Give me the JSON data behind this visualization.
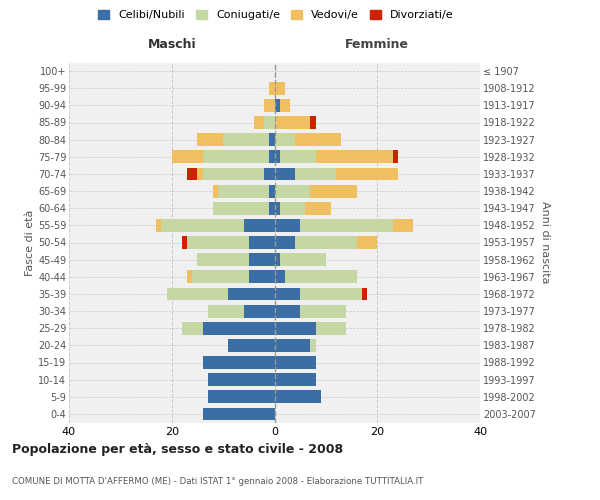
{
  "age_groups": [
    "0-4",
    "5-9",
    "10-14",
    "15-19",
    "20-24",
    "25-29",
    "30-34",
    "35-39",
    "40-44",
    "45-49",
    "50-54",
    "55-59",
    "60-64",
    "65-69",
    "70-74",
    "75-79",
    "80-84",
    "85-89",
    "90-94",
    "95-99",
    "100+"
  ],
  "birth_years": [
    "2003-2007",
    "1998-2002",
    "1993-1997",
    "1988-1992",
    "1983-1987",
    "1978-1982",
    "1973-1977",
    "1968-1972",
    "1963-1967",
    "1958-1962",
    "1953-1957",
    "1948-1952",
    "1943-1947",
    "1938-1942",
    "1933-1937",
    "1928-1932",
    "1923-1927",
    "1918-1922",
    "1913-1917",
    "1908-1912",
    "≤ 1907"
  ],
  "maschi": {
    "celibi": [
      14,
      13,
      13,
      14,
      9,
      14,
      6,
      9,
      5,
      5,
      5,
      6,
      1,
      1,
      2,
      1,
      1,
      0,
      0,
      0,
      0
    ],
    "coniugati": [
      0,
      0,
      0,
      0,
      0,
      4,
      7,
      12,
      11,
      10,
      12,
      16,
      11,
      10,
      12,
      13,
      9,
      2,
      0,
      0,
      0
    ],
    "vedovi": [
      0,
      0,
      0,
      0,
      0,
      0,
      0,
      0,
      1,
      0,
      0,
      1,
      0,
      1,
      1,
      6,
      5,
      2,
      2,
      1,
      0
    ],
    "divorziati": [
      0,
      0,
      0,
      0,
      0,
      0,
      0,
      0,
      0,
      0,
      1,
      0,
      0,
      0,
      2,
      0,
      0,
      0,
      0,
      0,
      0
    ]
  },
  "femmine": {
    "nubili": [
      0,
      9,
      8,
      8,
      7,
      8,
      5,
      5,
      2,
      1,
      4,
      5,
      1,
      0,
      4,
      1,
      0,
      0,
      1,
      0,
      0
    ],
    "coniugate": [
      0,
      0,
      0,
      0,
      1,
      6,
      9,
      12,
      14,
      9,
      12,
      18,
      5,
      7,
      8,
      7,
      4,
      0,
      0,
      0,
      0
    ],
    "vedove": [
      0,
      0,
      0,
      0,
      0,
      0,
      0,
      0,
      0,
      0,
      4,
      4,
      5,
      9,
      12,
      15,
      9,
      7,
      2,
      2,
      0
    ],
    "divorziate": [
      0,
      0,
      0,
      0,
      0,
      0,
      0,
      1,
      0,
      0,
      0,
      0,
      0,
      0,
      0,
      1,
      0,
      1,
      0,
      0,
      0
    ]
  },
  "colors": {
    "celibi_nubili": "#3b6ea5",
    "coniugati": "#c5d8a4",
    "vedovi": "#f0c060",
    "divorziati": "#cc2200"
  },
  "xlim": 40,
  "title": "Popolazione per età, sesso e stato civile - 2008",
  "subtitle": "COMUNE DI MOTTA D'AFFERMO (ME) - Dati ISTAT 1° gennaio 2008 - Elaborazione TUTTITALIA.IT",
  "ylabel_left": "Fasce di età",
  "ylabel_right": "Anni di nascita",
  "xlabel_left": "Maschi",
  "xlabel_right": "Femmine",
  "bg_color": "#f0f0f0",
  "grid_color": "#cccccc"
}
